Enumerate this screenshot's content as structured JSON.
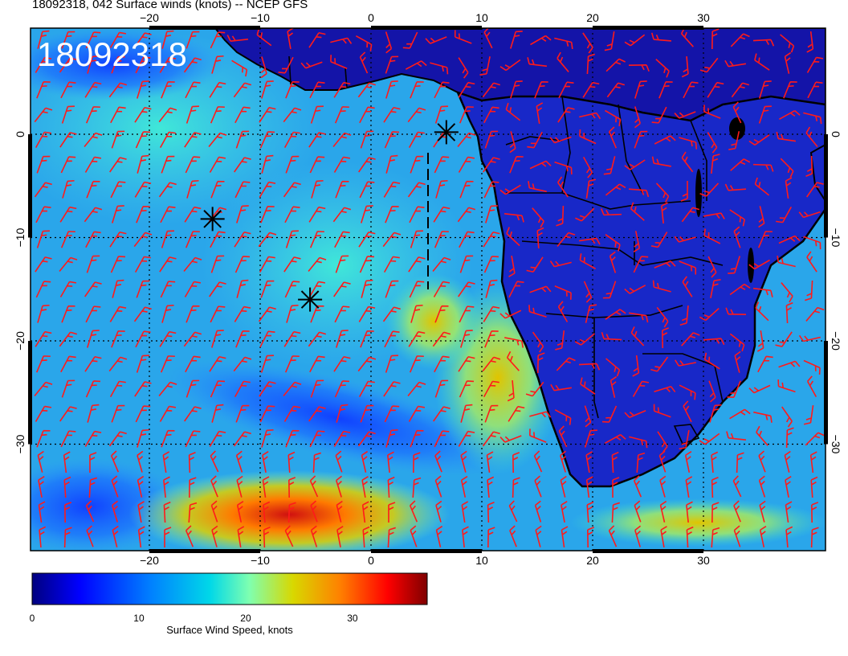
{
  "title": "18092318, 042 Surface winds (knots) -- NCEP GFS",
  "stamp": "18092318",
  "lon_labels": [
    "-20",
    "-10",
    "0",
    "10",
    "20",
    "30"
  ],
  "lat_labels": [
    "0",
    "-10",
    "-20",
    "-30"
  ],
  "colorbar": {
    "title": "Surface Wind Speed, knots",
    "tick_labels": [
      "0",
      "10",
      "20",
      "30"
    ],
    "range": [
      0,
      37
    ],
    "colors": [
      "#00007f",
      "#0000ff",
      "#0080ff",
      "#00d8e8",
      "#7fffb0",
      "#d8d800",
      "#ff8000",
      "#ff0000",
      "#7f0000"
    ]
  },
  "markers": [
    {
      "name": "marker-1",
      "lon": 6.8,
      "lat": 0.2
    },
    {
      "name": "marker-2",
      "lon": -14.3,
      "lat": -8.2
    },
    {
      "name": "marker-3",
      "lon": -5.5,
      "lat": -16.0
    }
  ],
  "colors": {
    "barb": "#ff1a1a",
    "coast": "#000000",
    "frame": "#000000"
  }
}
